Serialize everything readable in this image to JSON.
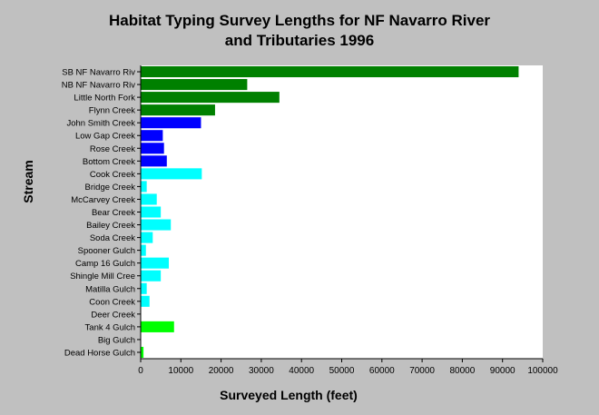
{
  "chart_data": {
    "type": "bar",
    "orientation": "horizontal",
    "title_line1": "Habitat Typing Survey Lengths for NF Navarro River",
    "title_line2": "and Tributaries 1996",
    "xlabel": "Surveyed Length (feet)",
    "ylabel": "Stream",
    "xlim": [
      0,
      100000
    ],
    "xticks": [
      "0",
      "10000",
      "20000",
      "30000",
      "40000",
      "50000",
      "60000",
      "70000",
      "80000",
      "90000",
      "100000"
    ],
    "xtick_values": [
      0,
      10000,
      20000,
      30000,
      40000,
      50000,
      60000,
      70000,
      80000,
      90000,
      100000
    ],
    "grid": false,
    "categories": [
      "SB NF Navarro Riv",
      "NB NF Navarro Riv",
      "Little North Fork",
      "Flynn Creek",
      "John Smith Creek",
      "Low Gap Creek",
      "Rose Creek",
      "Bottom Creek",
      "Cook Creek",
      "Bridge Creek",
      "McCarvey Creek",
      "Bear Creek",
      "Bailey Creek",
      "Soda Creek",
      "Spooner Gulch",
      "Camp 16 Gulch",
      "Shingle Mill Cree",
      "Matilla Gulch",
      "Coon Creek",
      "Deer Creek",
      "Tank 4 Gulch",
      "Big Gulch",
      "Dead Horse Gulch"
    ],
    "values": [
      94000,
      26500,
      34500,
      18500,
      15000,
      5500,
      5800,
      6500,
      15200,
      1500,
      4000,
      5000,
      7500,
      3000,
      1300,
      7000,
      5000,
      1500,
      2200,
      0,
      8300,
      0,
      700
    ],
    "colors": [
      "#008000",
      "#008000",
      "#008000",
      "#008000",
      "#0000ff",
      "#0000ff",
      "#0000ff",
      "#0000ff",
      "#00ffff",
      "#00ffff",
      "#00ffff",
      "#00ffff",
      "#00ffff",
      "#00ffff",
      "#00ffff",
      "#00ffff",
      "#00ffff",
      "#00ffff",
      "#00ffff",
      "#00ffff",
      "#00ff00",
      "#00ff00",
      "#00ff00"
    ]
  }
}
